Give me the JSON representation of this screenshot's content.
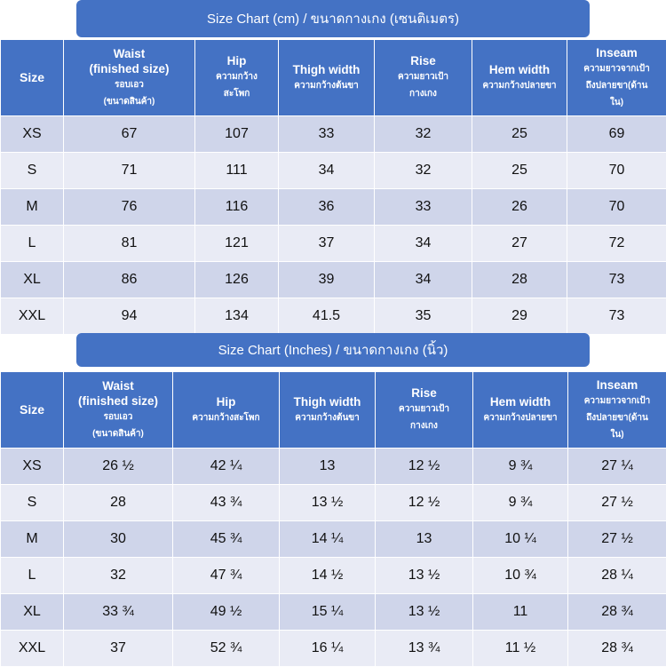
{
  "cm_chart": {
    "title": "Size Chart (cm) / ขนาดกางเกง (เซนติเมตร)",
    "headers": [
      {
        "en": "Size",
        "th": ""
      },
      {
        "en": "Waist\n(finished size)",
        "th": "รอบเอว\n(ขนาดสินค้า)"
      },
      {
        "en": "Hip",
        "th": "ความกว้าง\nสะโพก"
      },
      {
        "en": "Thigh width",
        "th": "ความกว้างต้นขา"
      },
      {
        "en": "Rise",
        "th": "ความยาวเป้า\nกางเกง"
      },
      {
        "en": "Hem width",
        "th": "ความกว้างปลายขา"
      },
      {
        "en": "Inseam",
        "th": "ความยาวจากเป้า\nถึงปลายขา(ด้าน\nใน)"
      }
    ],
    "rows": [
      [
        "XS",
        "67",
        "107",
        "33",
        "32",
        "25",
        "69"
      ],
      [
        "S",
        "71",
        "111",
        "34",
        "32",
        "25",
        "70"
      ],
      [
        "M",
        "76",
        "116",
        "36",
        "33",
        "26",
        "70"
      ],
      [
        "L",
        "81",
        "121",
        "37",
        "34",
        "27",
        "72"
      ],
      [
        "XL",
        "86",
        "126",
        "39",
        "34",
        "28",
        "73"
      ],
      [
        "XXL",
        "94",
        "134",
        "41.5",
        "35",
        "29",
        "73"
      ]
    ]
  },
  "inch_chart": {
    "title": "Size Chart (Inches) / ขนาดกางเกง (นิ้ว)",
    "headers": [
      {
        "en": "Size",
        "th": ""
      },
      {
        "en": "Waist\n(finished size)",
        "th": "รอบเอว\n(ขนาดสินค้า)"
      },
      {
        "en": "Hip",
        "th": "ความกว้างสะโพก"
      },
      {
        "en": "Thigh width",
        "th": "ความกว้างต้นขา"
      },
      {
        "en": "Rise",
        "th": "ความยาวเป้า\nกางเกง"
      },
      {
        "en": "Hem width",
        "th": "ความกว้างปลายขา"
      },
      {
        "en": "Inseam",
        "th": "ความยาวจากเป้า\nถึงปลายขา(ด้าน\nใน)"
      }
    ],
    "rows": [
      [
        "XS",
        "26 ½",
        "42 ¼",
        "13",
        "12 ½",
        "9 ¾",
        "27 ¼"
      ],
      [
        "S",
        "28",
        "43 ¾",
        "13 ½",
        "12 ½",
        "9 ¾",
        "27 ½"
      ],
      [
        "M",
        "30",
        "45 ¾",
        "14 ¼",
        "13",
        "10 ¼",
        "27 ½"
      ],
      [
        "L",
        "32",
        "47 ¾",
        "14 ½",
        "13 ½",
        "10 ¾",
        "28 ¼"
      ],
      [
        "XL",
        "33 ¾",
        "49 ½",
        "15 ¼",
        "13 ½",
        "11",
        "28 ¾"
      ],
      [
        "XXL",
        "37",
        "52 ¾",
        "16 ¼",
        "13 ¾",
        "11 ½",
        "28 ¾"
      ]
    ]
  },
  "colors": {
    "header_bg": "#4472c4",
    "row_dark": "#cfd5ea",
    "row_light": "#e9ebf5"
  }
}
